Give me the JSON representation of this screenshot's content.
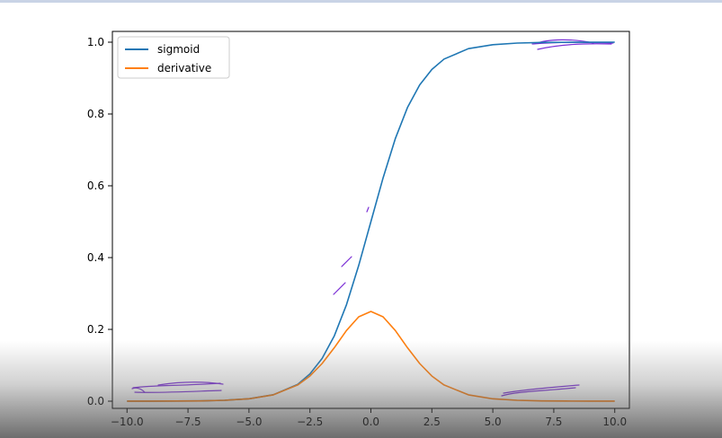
{
  "chart_data": {
    "type": "line",
    "title": "",
    "xlabel": "",
    "ylabel": "",
    "xlim": [
      -10.6,
      10.6
    ],
    "ylim": [
      -0.02,
      1.03
    ],
    "xticks": [
      -10.0,
      -7.5,
      -5.0,
      -2.5,
      0.0,
      2.5,
      5.0,
      7.5,
      10.0
    ],
    "xtick_labels": [
      "−10.0",
      "−7.5",
      "−5.0",
      "−2.5",
      "0.0",
      "2.5",
      "5.0",
      "7.5",
      "10.0"
    ],
    "yticks": [
      0.0,
      0.2,
      0.4,
      0.6,
      0.8,
      1.0
    ],
    "ytick_labels": [
      "0.0",
      "0.2",
      "0.4",
      "0.6",
      "0.8",
      "1.0"
    ],
    "grid": false,
    "legend_position": "top-left",
    "series": [
      {
        "name": "sigmoid",
        "color": "#1f77b4",
        "x": [
          -10,
          -9,
          -8,
          -7,
          -6,
          -5,
          -4,
          -3,
          -2.5,
          -2,
          -1.5,
          -1,
          -0.5,
          0,
          0.5,
          1,
          1.5,
          2,
          2.5,
          3,
          4,
          5,
          6,
          7,
          8,
          9,
          10
        ],
        "y": [
          5e-05,
          0.00012,
          0.00034,
          0.00091,
          0.0025,
          0.0067,
          0.018,
          0.047,
          0.076,
          0.119,
          0.182,
          0.269,
          0.378,
          0.5,
          0.622,
          0.731,
          0.818,
          0.881,
          0.924,
          0.953,
          0.982,
          0.993,
          0.9975,
          0.9991,
          0.9997,
          0.9999,
          1.0
        ]
      },
      {
        "name": "derivative",
        "color": "#ff7f0e",
        "x": [
          -10,
          -9,
          -8,
          -7,
          -6,
          -5,
          -4,
          -3,
          -2.5,
          -2,
          -1.5,
          -1,
          -0.5,
          0,
          0.5,
          1,
          1.5,
          2,
          2.5,
          3,
          4,
          5,
          6,
          7,
          8,
          9,
          10
        ],
        "y": [
          5e-05,
          0.00012,
          0.00034,
          0.00091,
          0.0025,
          0.0066,
          0.0177,
          0.0452,
          0.0701,
          0.105,
          0.149,
          0.197,
          0.235,
          0.25,
          0.235,
          0.197,
          0.149,
          0.105,
          0.0701,
          0.0452,
          0.0177,
          0.0066,
          0.0025,
          0.00091,
          0.00034,
          0.00012,
          5e-05
        ]
      }
    ]
  },
  "annotation_color": "#7b2fd6"
}
